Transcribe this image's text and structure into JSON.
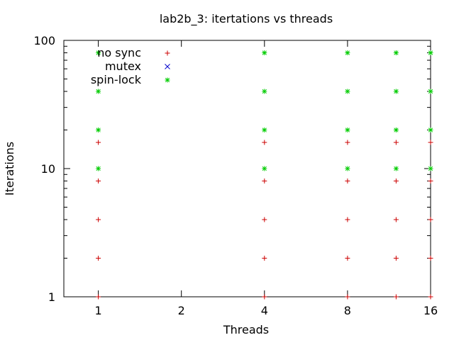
{
  "chart_data": {
    "type": "scatter",
    "title": "lab2b_3: itertations vs threads",
    "xlabel": "Threads",
    "ylabel": "Iterations",
    "x_scale": "log2",
    "y_scale": "log10",
    "xlim": [
      0.75,
      16
    ],
    "ylim": [
      1,
      100
    ],
    "x_ticks": [
      1,
      2,
      4,
      8,
      16
    ],
    "x_tick_labels": [
      "1",
      "2",
      "4",
      "8",
      "16"
    ],
    "y_ticks": [
      1,
      10,
      100
    ],
    "y_tick_labels": [
      "1",
      "10",
      "100"
    ],
    "grid": false,
    "legend_position": "top-left",
    "series": [
      {
        "name": "no sync",
        "color": "#cc0000",
        "marker": "plus",
        "points": [
          {
            "x": 1,
            "y": 1
          },
          {
            "x": 1,
            "y": 2
          },
          {
            "x": 1,
            "y": 4
          },
          {
            "x": 1,
            "y": 8
          },
          {
            "x": 1,
            "y": 16
          },
          {
            "x": 4,
            "y": 1
          },
          {
            "x": 4,
            "y": 2
          },
          {
            "x": 4,
            "y": 4
          },
          {
            "x": 4,
            "y": 8
          },
          {
            "x": 4,
            "y": 16
          },
          {
            "x": 8,
            "y": 1
          },
          {
            "x": 8,
            "y": 2
          },
          {
            "x": 8,
            "y": 4
          },
          {
            "x": 8,
            "y": 8
          },
          {
            "x": 8,
            "y": 16
          },
          {
            "x": 12,
            "y": 1
          },
          {
            "x": 12,
            "y": 2
          },
          {
            "x": 12,
            "y": 4
          },
          {
            "x": 12,
            "y": 8
          },
          {
            "x": 12,
            "y": 16
          },
          {
            "x": 16,
            "y": 1
          },
          {
            "x": 16,
            "y": 2
          },
          {
            "x": 16,
            "y": 4
          },
          {
            "x": 16,
            "y": 8
          },
          {
            "x": 16,
            "y": 16
          }
        ]
      },
      {
        "name": "mutex",
        "color": "#0000cc",
        "marker": "cross",
        "points": []
      },
      {
        "name": "spin-lock",
        "color": "#00cc00",
        "marker": "star",
        "points": [
          {
            "x": 1,
            "y": 10
          },
          {
            "x": 1,
            "y": 20
          },
          {
            "x": 1,
            "y": 40
          },
          {
            "x": 1,
            "y": 80
          },
          {
            "x": 4,
            "y": 10
          },
          {
            "x": 4,
            "y": 20
          },
          {
            "x": 4,
            "y": 40
          },
          {
            "x": 4,
            "y": 80
          },
          {
            "x": 8,
            "y": 10
          },
          {
            "x": 8,
            "y": 20
          },
          {
            "x": 8,
            "y": 40
          },
          {
            "x": 8,
            "y": 80
          },
          {
            "x": 12,
            "y": 10
          },
          {
            "x": 12,
            "y": 20
          },
          {
            "x": 12,
            "y": 40
          },
          {
            "x": 12,
            "y": 80
          },
          {
            "x": 16,
            "y": 10
          },
          {
            "x": 16,
            "y": 20
          },
          {
            "x": 16,
            "y": 40
          },
          {
            "x": 16,
            "y": 80
          }
        ]
      }
    ]
  }
}
